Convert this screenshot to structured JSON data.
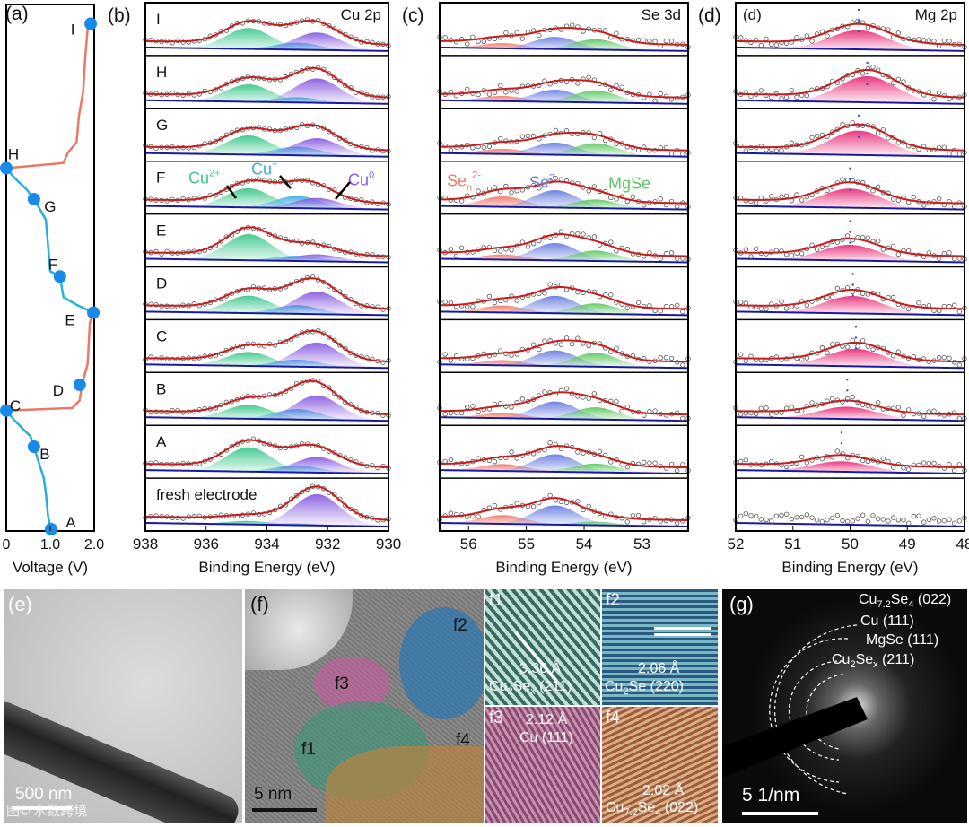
{
  "panels": {
    "a": "(a)",
    "b": "(b)",
    "c": "(c)",
    "d": "(d)",
    "e": "(e)",
    "f": "(f)",
    "g": "(g)"
  },
  "chart_data": [
    {
      "type": "line",
      "panel": "a",
      "xlabel": "Voltage (V)",
      "xlim": [
        0,
        2.0
      ],
      "xticks": [
        "0",
        "1.0",
        "2.0"
      ],
      "colors": {
        "discharge": "#2ab0d8",
        "charge": "#e87868",
        "marker": "#1a8ae8"
      },
      "points": [
        {
          "label": "A",
          "v": 1.02,
          "s": 1.0
        },
        {
          "label": "B",
          "v": 0.63,
          "s": 0.84
        },
        {
          "label": "C",
          "v": 0,
          "s": 0.77
        },
        {
          "label": "D",
          "v": 1.67,
          "s": 0.72
        },
        {
          "label": "E",
          "v": 1.98,
          "s": 0.58
        },
        {
          "label": "F",
          "v": 1.22,
          "s": 0.51
        },
        {
          "label": "G",
          "v": 0.63,
          "s": 0.36
        },
        {
          "label": "H",
          "v": 0,
          "s": 0.3
        },
        {
          "label": "I",
          "v": 1.92,
          "s": 0.02
        }
      ],
      "segments": [
        {
          "kind": "discharge",
          "xy": [
            [
              1.02,
              1.0
            ],
            [
              0.95,
              0.975
            ],
            [
              0.9,
              0.93
            ],
            [
              0.85,
              0.9
            ],
            [
              0.7,
              0.86
            ],
            [
              0.63,
              0.84
            ],
            [
              0.55,
              0.82
            ],
            [
              0.2,
              0.79
            ],
            [
              0,
              0.77
            ]
          ]
        },
        {
          "kind": "charge",
          "xy": [
            [
              0,
              0.77
            ],
            [
              1.5,
              0.765
            ],
            [
              1.67,
              0.75
            ],
            [
              1.72,
              0.72
            ],
            [
              1.85,
              0.68
            ],
            [
              1.9,
              0.6
            ],
            [
              1.98,
              0.58
            ]
          ]
        },
        {
          "kind": "discharge",
          "xy": [
            [
              1.98,
              0.58
            ],
            [
              1.6,
              0.565
            ],
            [
              1.3,
              0.55
            ],
            [
              1.22,
              0.51
            ],
            [
              1.0,
              0.5
            ],
            [
              0.95,
              0.45
            ],
            [
              0.9,
              0.4
            ],
            [
              0.7,
              0.37
            ],
            [
              0.63,
              0.36
            ],
            [
              0.45,
              0.34
            ],
            [
              0.2,
              0.32
            ],
            [
              0,
              0.3
            ]
          ]
        },
        {
          "kind": "charge",
          "xy": [
            [
              0,
              0.3
            ],
            [
              1.3,
              0.29
            ],
            [
              1.4,
              0.27
            ],
            [
              1.6,
              0.25
            ],
            [
              1.65,
              0.2
            ],
            [
              1.75,
              0.15
            ],
            [
              1.8,
              0.08
            ],
            [
              1.85,
              0.03
            ],
            [
              1.92,
              0.02
            ]
          ]
        }
      ]
    },
    {
      "type": "area",
      "panel": "b",
      "title": "Cu 2p",
      "xlabel": "Binding Energy (eV)",
      "xlim": [
        938,
        930
      ],
      "xticks": [
        938,
        936,
        934,
        932,
        930
      ],
      "sigma": 0.75,
      "components": [
        {
          "name": "Cu2+",
          "label": "Cu",
          "sup": "2+",
          "center": 934.6,
          "color": "#3cc88c"
        },
        {
          "name": "Cu+",
          "label": "Cu",
          "sup": "+",
          "center": 933.0,
          "color": "#3aaee0"
        },
        {
          "name": "Cu0",
          "label": "Cu",
          "sup": "0",
          "center": 932.35,
          "color": "#8a5ce0"
        }
      ],
      "rows": [
        {
          "label": "I",
          "amps": [
            0.6,
            0.2,
            0.5
          ]
        },
        {
          "label": "H",
          "amps": [
            0.5,
            0.15,
            0.7
          ]
        },
        {
          "label": "G",
          "amps": [
            0.55,
            0.25,
            0.5
          ]
        },
        {
          "label": "F",
          "amps": [
            0.55,
            0.35,
            0.3
          ]
        },
        {
          "label": "E",
          "amps": [
            0.75,
            0.15,
            0.2
          ]
        },
        {
          "label": "D",
          "amps": [
            0.5,
            0.25,
            0.65
          ]
        },
        {
          "label": "C",
          "amps": [
            0.4,
            0.2,
            0.7
          ]
        },
        {
          "label": "B",
          "amps": [
            0.4,
            0.3,
            0.7
          ]
        },
        {
          "label": "A",
          "amps": [
            0.7,
            0.2,
            0.45
          ]
        },
        {
          "label": "fresh electrode",
          "amps": [
            0.1,
            0.05,
            0.9
          ]
        }
      ]
    },
    {
      "type": "area",
      "panel": "c",
      "title": "Se 3d",
      "xlabel": "Binding Energy (eV)",
      "xlim": [
        56.5,
        52.2
      ],
      "xticks": [
        56,
        55,
        54,
        53
      ],
      "sigma": 0.38,
      "components": [
        {
          "name": "Sen2-",
          "label": "Se",
          "sub": "n",
          "sup": "2-",
          "center": 55.4,
          "color": "#f07a6a"
        },
        {
          "name": "Se2-",
          "label": "Se",
          "sup": "2-",
          "center": 54.5,
          "color": "#6a7ee0"
        },
        {
          "name": "MgSe",
          "label": "MgSe",
          "center": 53.8,
          "color": "#5cc860"
        }
      ],
      "rows": [
        {
          "amps": [
            0.15,
            0.35,
            0.3
          ]
        },
        {
          "amps": [
            0.15,
            0.35,
            0.35
          ]
        },
        {
          "amps": [
            0.15,
            0.35,
            0.35
          ]
        },
        {
          "amps": [
            0.3,
            0.5,
            0.25
          ]
        },
        {
          "amps": [
            0.15,
            0.5,
            0.3
          ]
        },
        {
          "amps": [
            0.2,
            0.5,
            0.3
          ]
        },
        {
          "amps": [
            0.15,
            0.45,
            0.4
          ]
        },
        {
          "amps": [
            0.15,
            0.5,
            0.35
          ]
        },
        {
          "amps": [
            0.2,
            0.5,
            0.25
          ]
        },
        {
          "amps": [
            0.25,
            0.55,
            0.1
          ]
        }
      ]
    },
    {
      "type": "area",
      "panel": "d",
      "title": "Mg 2p",
      "xlabel": "Binding Energy (eV)",
      "xlim": [
        52,
        48
      ],
      "xticks": [
        52,
        51,
        50,
        49,
        48
      ],
      "sigma": 0.5,
      "components": [
        {
          "name": "Mg",
          "center": 49.9,
          "color": "#e8307a"
        }
      ],
      "centers": [
        49.85,
        49.7,
        49.85,
        50.0,
        50.0,
        49.95,
        49.9,
        50.05,
        50.15,
        null
      ],
      "rows": [
        {
          "amps": [
            0.55
          ]
        },
        {
          "amps": [
            0.75
          ]
        },
        {
          "amps": [
            0.7
          ]
        },
        {
          "amps": [
            0.55
          ]
        },
        {
          "amps": [
            0.45
          ]
        },
        {
          "amps": [
            0.5
          ]
        },
        {
          "amps": [
            0.5
          ]
        },
        {
          "amps": [
            0.35
          ]
        },
        {
          "amps": [
            0.3
          ]
        },
        {
          "amps": [
            0
          ]
        }
      ]
    }
  ],
  "images": {
    "e": {
      "scale": "500 nm",
      "watermark": "图© 水数跨境"
    },
    "f": {
      "scale": "5 nm",
      "regions": [
        "f1",
        "f2",
        "f3",
        "f4"
      ]
    },
    "f1": {
      "tag": "f1",
      "d": "3.36 Å",
      "phase": "Cu",
      "s1": "2",
      "mid": "Se",
      "s2": "x",
      "hkl": " (211)"
    },
    "f2": {
      "tag": "f2",
      "d": "2.06 Å",
      "phase": "Cu",
      "s1": "2",
      "mid": "Se",
      "s2": "",
      "hkl": " (220)"
    },
    "f3": {
      "tag": "f3",
      "d": "2.12 Å",
      "phase": "Cu (111)"
    },
    "f4": {
      "tag": "f4",
      "d": "2.02 Å",
      "phase": "Cu",
      "s1": "7.2",
      "mid": "Se",
      "s2": "4",
      "hkl": " (022)"
    },
    "g": {
      "scale": "5 1/nm",
      "rings": [
        {
          "a": "Cu",
          "s1": "7.2",
          "b": "Se",
          "s2": "4",
          "c": " (022)"
        },
        {
          "a": "Cu (111)",
          "s1": "",
          "b": "",
          "s2": "",
          "c": ""
        },
        {
          "a": "MgSe (111)",
          "s1": "",
          "b": "",
          "s2": "",
          "c": ""
        },
        {
          "a": "Cu",
          "s1": "2",
          "b": "Se",
          "s2": "x",
          "c": " (211)"
        }
      ]
    }
  }
}
